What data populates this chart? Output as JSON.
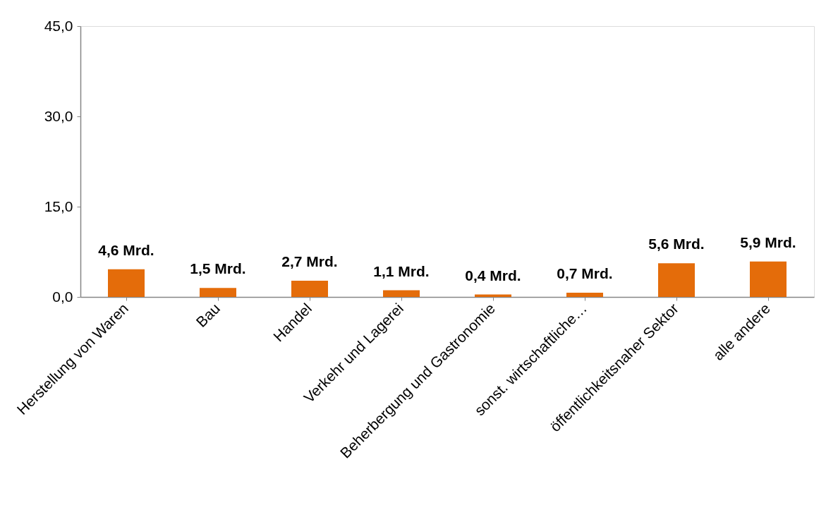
{
  "chart_data": {
    "type": "bar",
    "categories": [
      "Herstellung von Waren",
      "Bau",
      "Handel",
      "Verkehr und Lagerei",
      "Beherbergung und Gastronomie",
      "sonst. wirtschaftliche…",
      "öffentlichkeitsnaher Sektor",
      "alle andere"
    ],
    "values": [
      4.6,
      1.5,
      2.7,
      1.1,
      0.4,
      0.7,
      5.6,
      5.9
    ],
    "value_labels": [
      "4,6 Mrd.",
      "1,5 Mrd.",
      "2,7 Mrd.",
      "1,1 Mrd.",
      "0,4 Mrd.",
      "0,7 Mrd.",
      "5,6 Mrd.",
      "5,9 Mrd."
    ],
    "color": "#e46c0a",
    "ylim": [
      0,
      45
    ],
    "yticks": [
      {
        "value": 0,
        "label": "0,0"
      },
      {
        "value": 15,
        "label": "15,0"
      },
      {
        "value": 30,
        "label": "30,0"
      },
      {
        "value": 45,
        "label": "45,0"
      }
    ],
    "grid": false
  }
}
